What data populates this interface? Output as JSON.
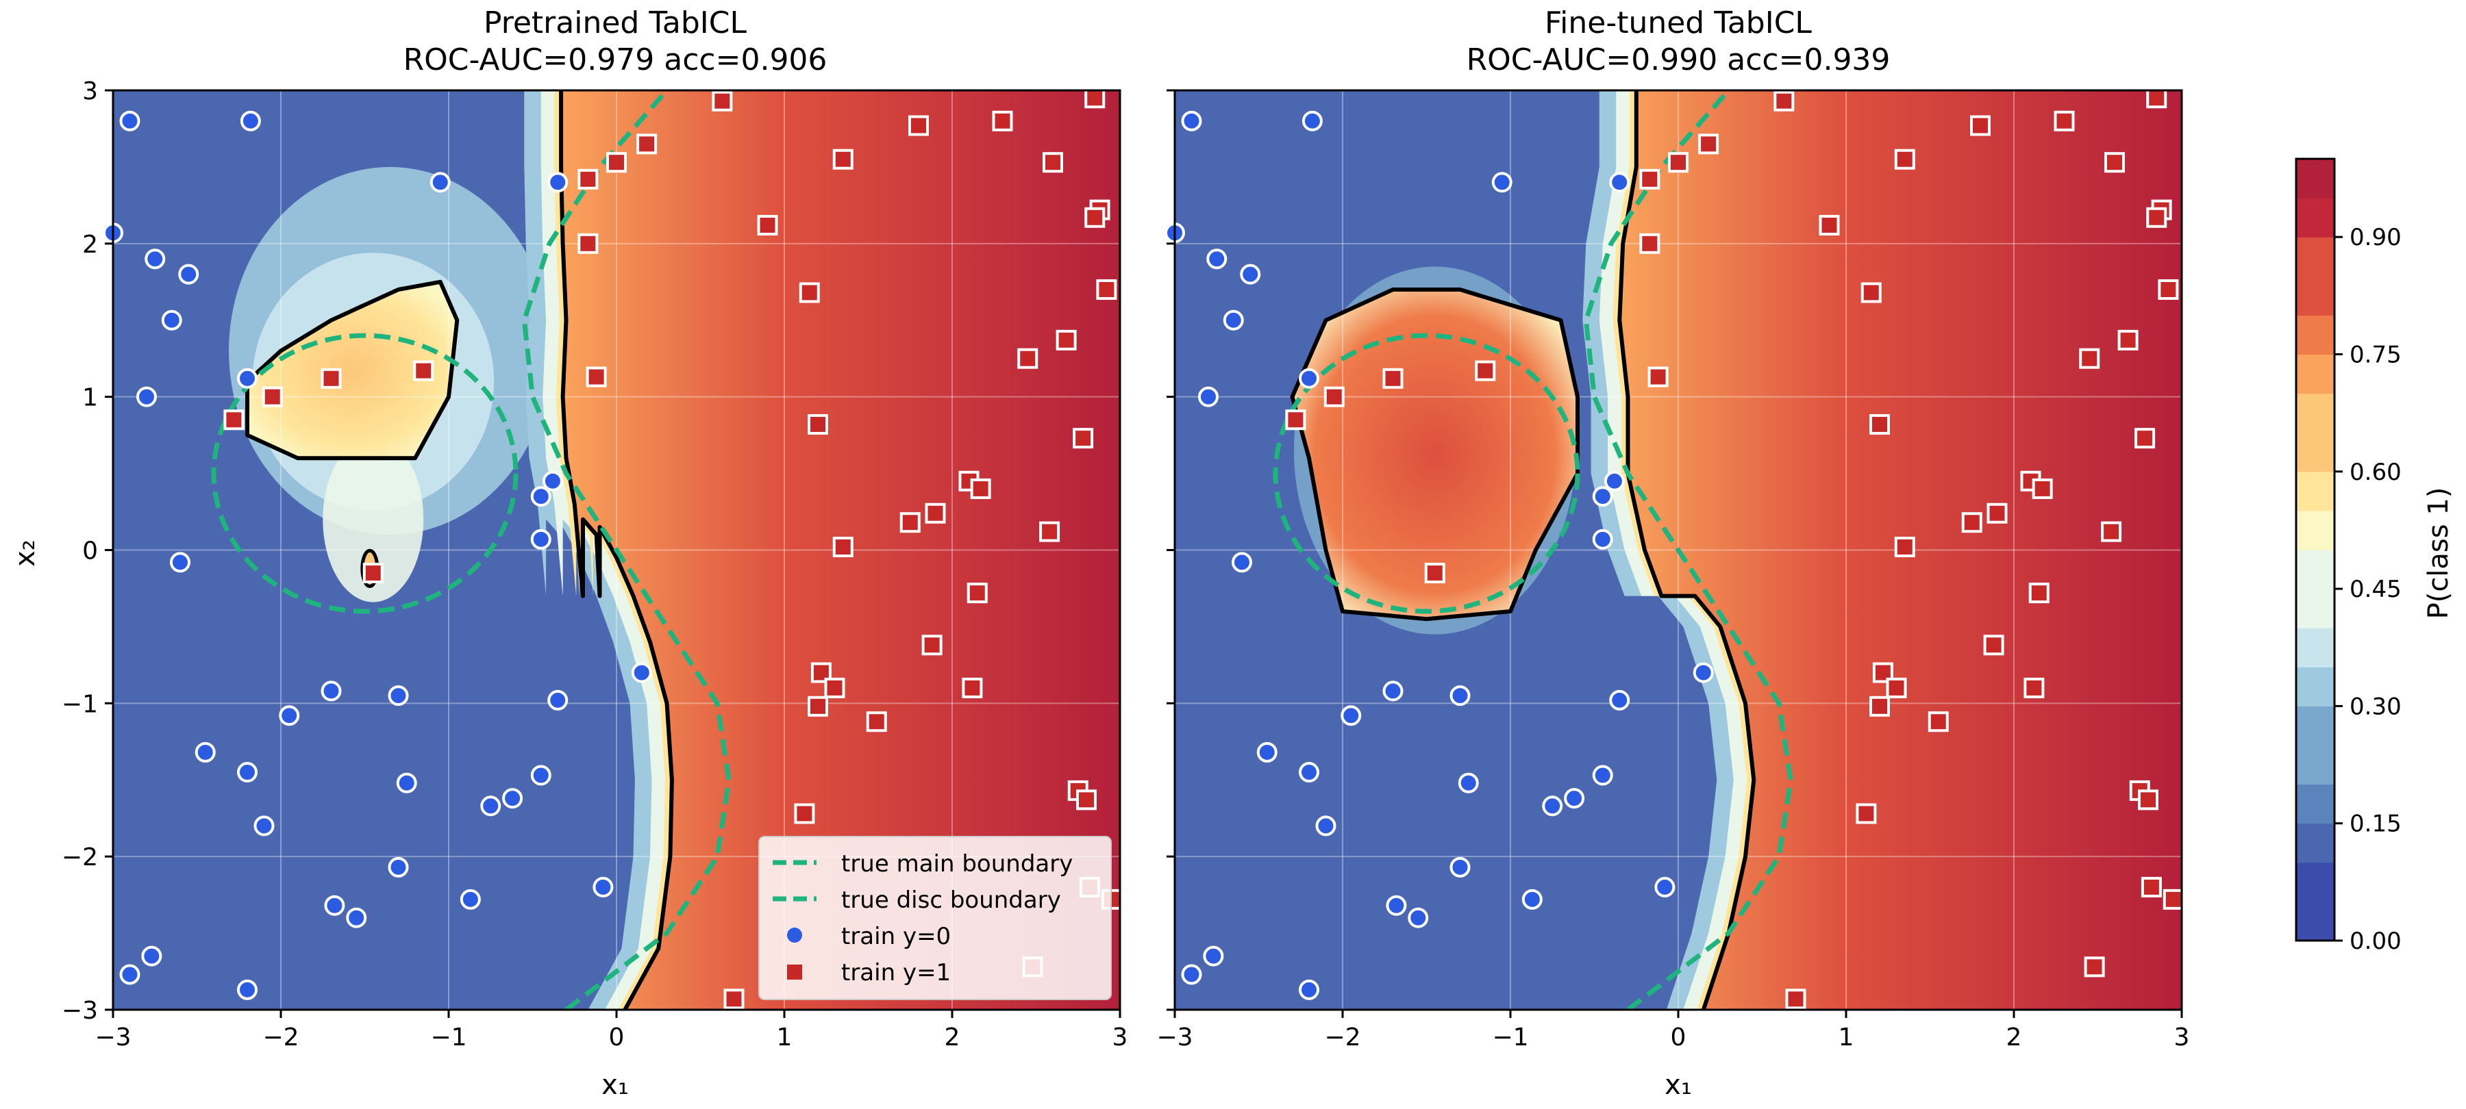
{
  "chart_data": [
    {
      "type": "heatmap",
      "panel": "left",
      "title": "Pretrained TabICL",
      "subtitle": "ROC-AUC=0.979  acc=0.906",
      "xlabel": "x₁",
      "ylabel": "x₂",
      "xlim": [
        -3,
        3
      ],
      "ylim": [
        -3,
        3
      ],
      "xticks": [
        "−3",
        "−2",
        "−1",
        "0",
        "1",
        "2",
        "3"
      ],
      "yticks": [
        "−3",
        "−2",
        "−1",
        "0",
        "1",
        "2",
        "3"
      ],
      "grid": true,
      "legend_position": "lower-right",
      "legend": [
        "true main boundary",
        "true disc boundary",
        "train y=0",
        "train y=1"
      ],
      "decision_boundary": [
        [
          0.05,
          -3
        ],
        [
          0.25,
          -2.6
        ],
        [
          0.32,
          -2.0
        ],
        [
          0.33,
          -1.5
        ],
        [
          0.3,
          -1.0
        ],
        [
          0.2,
          -0.6
        ],
        [
          0.1,
          -0.3
        ],
        [
          0.0,
          -0.05
        ],
        [
          -0.1,
          0.15
        ],
        [
          -0.1,
          -0.3
        ],
        [
          -0.12,
          0.1
        ],
        [
          -0.2,
          0.2
        ],
        [
          -0.2,
          -0.3
        ],
        [
          -0.25,
          0.3
        ],
        [
          -0.3,
          0.6
        ],
        [
          -0.32,
          1.0
        ],
        [
          -0.3,
          1.5
        ],
        [
          -0.32,
          2.0
        ],
        [
          -0.33,
          2.5
        ],
        [
          -0.33,
          3.0
        ]
      ],
      "island_boundary": [
        [
          -2.2,
          1.1
        ],
        [
          -2.0,
          1.3
        ],
        [
          -1.7,
          1.5
        ],
        [
          -1.3,
          1.7
        ],
        [
          -1.05,
          1.75
        ],
        [
          -0.95,
          1.5
        ],
        [
          -1.0,
          1.0
        ],
        [
          -1.2,
          0.6
        ],
        [
          -1.5,
          0.6
        ],
        [
          -1.9,
          0.6
        ],
        [
          -2.2,
          0.75
        ]
      ]
    },
    {
      "type": "heatmap",
      "panel": "right",
      "title": "Fine-tuned TabICL",
      "subtitle": "ROC-AUC=0.990  acc=0.939",
      "xlabel": "x₁",
      "xlim": [
        -3,
        3
      ],
      "ylim": [
        -3,
        3
      ],
      "xticks": [
        "−3",
        "−2",
        "−1",
        "0",
        "1",
        "2",
        "3"
      ],
      "grid": true,
      "decision_boundary": [
        [
          0.15,
          -3
        ],
        [
          0.3,
          -2.5
        ],
        [
          0.4,
          -2.0
        ],
        [
          0.45,
          -1.5
        ],
        [
          0.4,
          -1.0
        ],
        [
          0.25,
          -0.5
        ],
        [
          0.1,
          -0.3
        ],
        [
          -0.1,
          -0.3
        ],
        [
          -0.2,
          0.0
        ],
        [
          -0.3,
          0.5
        ],
        [
          -0.3,
          1.0
        ],
        [
          -0.35,
          1.5
        ],
        [
          -0.33,
          2.0
        ],
        [
          -0.25,
          2.5
        ],
        [
          -0.25,
          3.0
        ]
      ],
      "island_boundary": [
        [
          -2.3,
          1.0
        ],
        [
          -2.1,
          1.5
        ],
        [
          -1.7,
          1.7
        ],
        [
          -1.3,
          1.7
        ],
        [
          -0.7,
          1.5
        ],
        [
          -0.6,
          1.0
        ],
        [
          -0.6,
          0.5
        ],
        [
          -0.85,
          0.0
        ],
        [
          -1.0,
          -0.4
        ],
        [
          -1.5,
          -0.45
        ],
        [
          -2.0,
          -0.4
        ],
        [
          -2.1,
          0.0
        ],
        [
          -2.2,
          0.6
        ]
      ]
    }
  ],
  "true_boundaries": {
    "main": {
      "label": "true main boundary",
      "color": "#1fb47e",
      "points": [
        [
          -0.3,
          -3
        ],
        [
          0.3,
          -2.5
        ],
        [
          0.6,
          -2.0
        ],
        [
          0.67,
          -1.5
        ],
        [
          0.6,
          -1.0
        ],
        [
          0.3,
          -0.5
        ],
        [
          0.0,
          0.0
        ],
        [
          -0.3,
          0.5
        ],
        [
          -0.5,
          1.0
        ],
        [
          -0.55,
          1.5
        ],
        [
          -0.4,
          2.0
        ],
        [
          -0.1,
          2.5
        ],
        [
          0.3,
          3.0
        ]
      ]
    },
    "disc": {
      "label": "true disc boundary",
      "color": "#1fb47e",
      "center": [
        -1.5,
        0.5
      ],
      "radius": 0.9
    }
  },
  "train_y0": {
    "label": "train y=0",
    "color": "#2b5be0",
    "points": [
      [
        -2.9,
        2.8
      ],
      [
        -2.18,
        2.8
      ],
      [
        -3.0,
        2.07
      ],
      [
        -2.75,
        1.9
      ],
      [
        -2.55,
        1.8
      ],
      [
        -2.65,
        1.5
      ],
      [
        -2.2,
        1.12
      ],
      [
        -2.8,
        1.0
      ],
      [
        -2.6,
        -0.08
      ],
      [
        -1.05,
        2.4
      ],
      [
        -0.35,
        2.4
      ],
      [
        -0.38,
        0.45
      ],
      [
        -0.45,
        0.35
      ],
      [
        -0.45,
        0.07
      ],
      [
        -0.35,
        -0.98
      ],
      [
        0.15,
        -0.8
      ],
      [
        -1.3,
        -0.95
      ],
      [
        -1.7,
        -0.92
      ],
      [
        -1.95,
        -1.08
      ],
      [
        -2.45,
        -1.32
      ],
      [
        -2.2,
        -1.45
      ],
      [
        -2.1,
        -1.8
      ],
      [
        -1.25,
        -1.52
      ],
      [
        -0.45,
        -1.47
      ],
      [
        -0.62,
        -1.62
      ],
      [
        -0.75,
        -1.67
      ],
      [
        -1.3,
        -2.07
      ],
      [
        -1.68,
        -2.32
      ],
      [
        -1.55,
        -2.4
      ],
      [
        -0.87,
        -2.28
      ],
      [
        -0.08,
        -2.2
      ],
      [
        -2.77,
        -2.65
      ],
      [
        -2.9,
        -2.77
      ],
      [
        -2.2,
        -2.87
      ]
    ]
  },
  "train_y1": {
    "label": "train y=1",
    "color": "#c62828",
    "points": [
      [
        0.63,
        2.93
      ],
      [
        0.18,
        2.65
      ],
      [
        0.0,
        2.53
      ],
      [
        -0.17,
        2.42
      ],
      [
        -0.17,
        2.0
      ],
      [
        -0.12,
        1.13
      ],
      [
        -2.28,
        0.85
      ],
      [
        -2.05,
        1.0
      ],
      [
        -1.7,
        1.12
      ],
      [
        -1.15,
        1.17
      ],
      [
        -1.45,
        -0.15
      ],
      [
        0.9,
        2.12
      ],
      [
        1.35,
        2.55
      ],
      [
        1.15,
        1.68
      ],
      [
        1.2,
        0.82
      ],
      [
        1.8,
        2.77
      ],
      [
        2.3,
        2.8
      ],
      [
        2.6,
        2.53
      ],
      [
        2.85,
        2.95
      ],
      [
        2.88,
        2.22
      ],
      [
        2.85,
        2.17
      ],
      [
        2.92,
        1.7
      ],
      [
        2.68,
        1.37
      ],
      [
        2.45,
        1.25
      ],
      [
        2.78,
        0.73
      ],
      [
        2.1,
        0.45
      ],
      [
        2.17,
        0.4
      ],
      [
        1.9,
        0.24
      ],
      [
        1.75,
        0.18
      ],
      [
        2.58,
        0.12
      ],
      [
        1.35,
        0.02
      ],
      [
        2.15,
        -0.28
      ],
      [
        1.88,
        -0.62
      ],
      [
        1.22,
        -0.8
      ],
      [
        1.3,
        -0.9
      ],
      [
        1.2,
        -1.02
      ],
      [
        2.12,
        -0.9
      ],
      [
        1.55,
        -1.12
      ],
      [
        1.12,
        -1.72
      ],
      [
        2.75,
        -1.57
      ],
      [
        2.8,
        -1.63
      ],
      [
        2.82,
        -2.2
      ],
      [
        2.95,
        -2.28
      ],
      [
        2.48,
        -2.72
      ],
      [
        0.7,
        -2.93
      ]
    ]
  },
  "colorbar": {
    "label": "P(class 1)",
    "ticks": [
      "0.00",
      "0.15",
      "0.30",
      "0.45",
      "0.60",
      "0.75",
      "0.90"
    ],
    "levels": 20,
    "colormap": [
      "#3b4cab",
      "#4a67b0",
      "#5a84bb",
      "#7aa7cc",
      "#9ec9de",
      "#c8e5ee",
      "#ebf6ea",
      "#fcf8c6",
      "#fee59a",
      "#fdc779",
      "#f9a35c",
      "#ef7b4a",
      "#dd503e",
      "#c3273a",
      "#b3203a"
    ]
  }
}
